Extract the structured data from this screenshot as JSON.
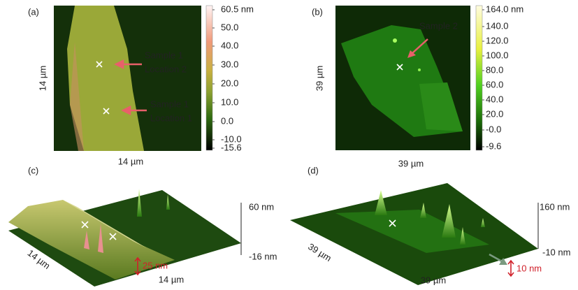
{
  "panels": [
    {
      "label": "(a)",
      "x_label": "14 µm",
      "y_label": "14 µm",
      "colorbar": [
        "60.5 nm",
        "50.0",
        "40.0",
        "30.0",
        "20.0",
        "10.0",
        "0.0",
        "-10.0",
        "-15.6"
      ],
      "annotations": [
        [
          "Sample 1",
          "Location 2"
        ],
        [
          "Sample 1",
          "Location 1"
        ]
      ]
    },
    {
      "label": "(b)",
      "x_label": "39 µm",
      "y_label": "39 µm",
      "colorbar": [
        "164.0 nm",
        "140.0",
        "120.0",
        "100.0",
        "80.0",
        "60.0",
        "40.0",
        "20.0",
        "-0.0",
        "-9.6"
      ],
      "annotations": [
        [
          "Sample 2"
        ]
      ]
    },
    {
      "label": "(c)",
      "x_label": "14 µm",
      "y_label": "14 µm",
      "z_labels": [
        "60 nm",
        "-16 nm"
      ],
      "step_label": "25 nm"
    },
    {
      "label": "(d)",
      "x_label": "39 µm",
      "y_label": "39 µm",
      "z_labels": [
        "160 nm",
        "-10 nm"
      ],
      "step_label": "10 nm"
    }
  ]
}
